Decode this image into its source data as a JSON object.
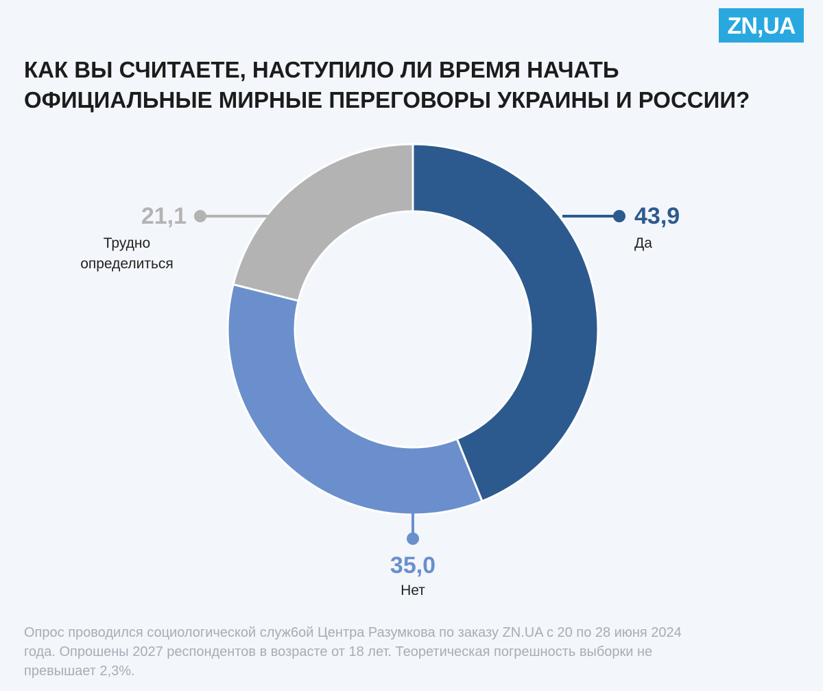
{
  "brand": "ZN,UA",
  "chart_data": {
    "type": "donut",
    "title": "КАК ВЫ СЧИТАЕТЕ, НАСТУПИЛО ЛИ ВРЕМЯ НАЧАТЬ ОФИЦИАЛЬНЫЕ МИРНЫЕ ПЕРЕГОВОРЫ УКРАИНЫ И РОССИИ?",
    "categories": [
      "Да",
      "Нет",
      "Трудно определиться"
    ],
    "values": [
      43.9,
      35.0,
      21.1
    ],
    "value_labels": [
      "43,9",
      "35,0",
      "21,1"
    ],
    "colors": [
      "#2d5a8e",
      "#6a8fcc",
      "#b3b3b3"
    ],
    "note": "Опрос проводился социологической служ6ой Центра Разумкова по заказу ZN.UA с 20 по 28 июня 2024 года. Опрошены 2027 респондентов в возрасте от 18 лет. Теоретическая погрешность выборки не превышает 2,3%."
  }
}
